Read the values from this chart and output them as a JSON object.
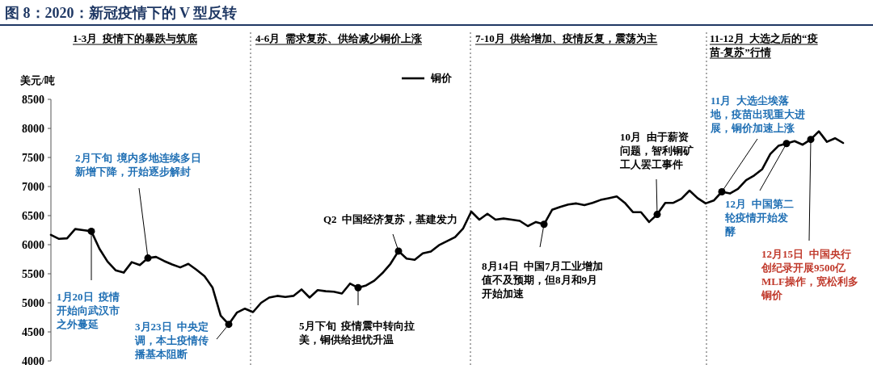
{
  "chart_data": {
    "type": "line",
    "title": "图 8：2020：新冠疫情下的 V 型反转",
    "ylabel": "美元/吨",
    "categories": [
      null,
      null,
      null,
      null,
      null,
      null,
      null,
      null,
      null,
      null,
      null,
      null,
      null,
      null,
      null,
      null,
      null,
      null,
      null,
      null,
      null,
      null,
      null,
      null,
      null,
      null,
      null,
      null,
      null,
      null,
      null,
      null,
      null,
      null,
      null,
      null,
      null,
      null,
      null,
      null,
      null,
      null,
      null,
      null,
      null,
      null,
      null,
      null,
      null,
      null,
      null,
      null,
      null,
      null,
      null,
      null,
      null,
      null,
      null,
      null,
      null,
      null,
      null,
      null,
      null,
      null,
      null,
      null,
      null,
      null,
      null,
      null,
      null,
      null,
      null,
      null,
      null,
      null,
      null,
      null,
      null,
      null,
      null,
      null,
      null,
      null,
      null,
      null,
      null,
      null,
      null,
      null,
      null,
      null,
      null,
      null,
      null,
      null,
      null
    ],
    "series": [
      {
        "name": "铜价",
        "color": "#000000",
        "values": [
          6170,
          6100,
          6110,
          6270,
          6250,
          6230,
          5930,
          5710,
          5560,
          5520,
          5700,
          5650,
          5770,
          5790,
          5720,
          5660,
          5610,
          5670,
          5570,
          5460,
          5260,
          4780,
          4630,
          4830,
          4900,
          4840,
          5000,
          5090,
          5120,
          5100,
          5120,
          5230,
          5090,
          5220,
          5200,
          5190,
          5160,
          5330,
          5260,
          5300,
          5380,
          5510,
          5670,
          5890,
          5760,
          5740,
          5850,
          5880,
          5990,
          6060,
          6130,
          6280,
          6570,
          6430,
          6530,
          6430,
          6450,
          6430,
          6410,
          6320,
          6390,
          6350,
          6600,
          6650,
          6690,
          6710,
          6680,
          6720,
          6770,
          6800,
          6830,
          6720,
          6560,
          6560,
          6390,
          6520,
          6720,
          6720,
          6790,
          6930,
          6800,
          6710,
          6760,
          6910,
          6880,
          6960,
          7110,
          7190,
          7300,
          7560,
          7700,
          7740,
          7780,
          7720,
          7810,
          7950,
          7770,
          7830,
          7750
        ]
      }
    ],
    "ylim": [
      4000,
      8500
    ],
    "yticks": [
      4000,
      4500,
      5000,
      5500,
      6000,
      6500,
      7000,
      7500,
      8000,
      8500
    ],
    "tick_labels": "y",
    "grid": false,
    "legend": "top",
    "line_style": "solid",
    "annotations": [
      "1-3月  疫情下的暴跌与筑底",
      "4-6月  需求复苏、供给减少铜价上涨",
      "7-10月  供给增加、疫情反复，震荡为主",
      "11-12月  大选之后的“疫苗-复苏”行情",
      "2月下旬  境内多地连续多日新增下降，开始逐步解封",
      "1月20日  疫情开始向武汉市之外蔓延",
      "3月23日  中央定调，本土疫情传播基本阻断",
      "5月下旬  疫情震中转向拉美，铜供给担忧升温",
      "Q2  中国经济复苏，基建发力",
      "8月14日  中国7月工业增加值不及预期，但8月和9月开始加速",
      "10月  由于薪资问题，智利铜矿工人罢工事件",
      "11月  大选尘埃落地，疫苗出现重大进展，铜价加速上涨",
      "12月  中国第二轮疫情开始发酵",
      "12月15日  中国央行创纪录开展9500亿MLF操作，宽松利多铜价"
    ]
  }
}
